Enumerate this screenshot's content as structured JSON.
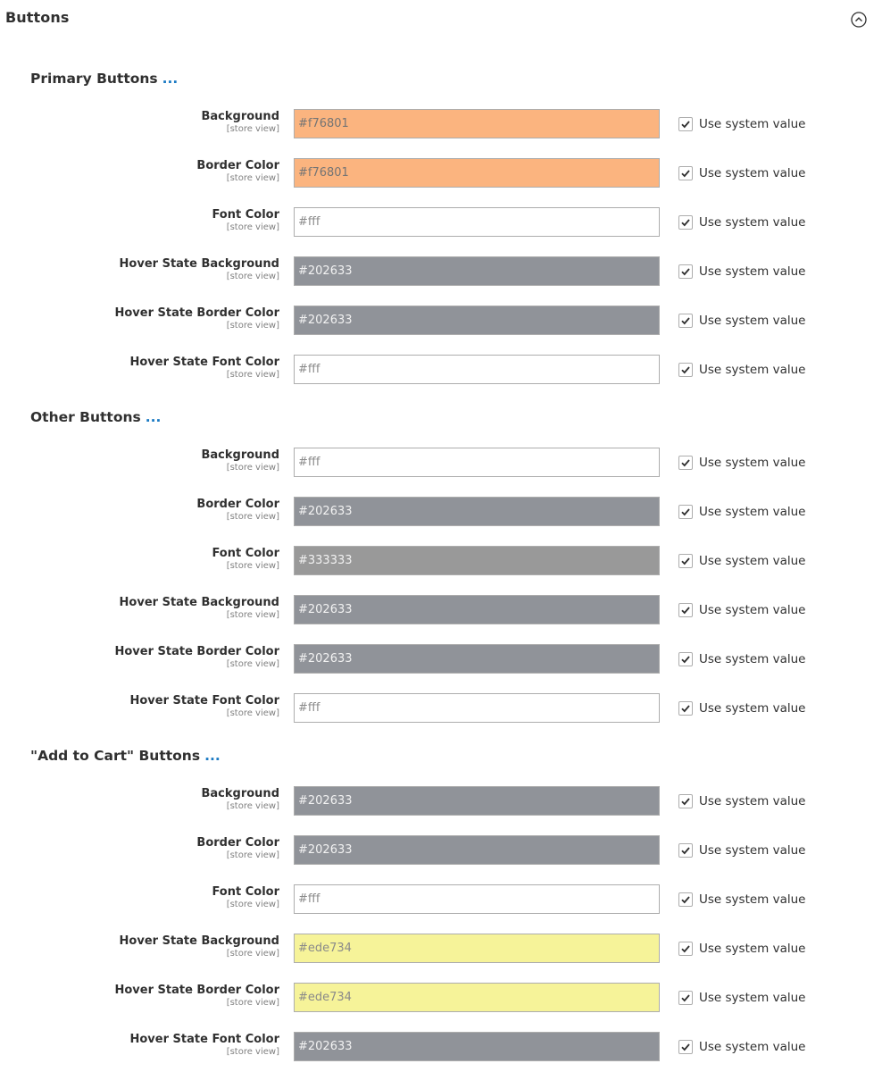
{
  "section": {
    "title": "Buttons"
  },
  "use_default_label": "Use system value",
  "groups": [
    {
      "title": "Primary Buttons",
      "dots": "...",
      "fields": [
        {
          "label": "Background",
          "scope": "[store view]",
          "value": "#f76801",
          "bg": "#fbb47f",
          "text": "#747474",
          "checked": true
        },
        {
          "label": "Border Color",
          "scope": "[store view]",
          "value": "#f76801",
          "bg": "#fbb47f",
          "text": "#747474",
          "checked": true
        },
        {
          "label": "Font Color",
          "scope": "[store view]",
          "value": "#fff",
          "bg": "#ffffff",
          "text": "#8a8a8a",
          "checked": true
        },
        {
          "label": "Hover State Background",
          "scope": "[store view]",
          "value": "#202633",
          "bg": "#909399",
          "text": "#f2f2f2",
          "checked": true
        },
        {
          "label": "Hover State Border Color",
          "scope": "[store view]",
          "value": "#202633",
          "bg": "#909399",
          "text": "#f2f2f2",
          "checked": true
        },
        {
          "label": "Hover State Font Color",
          "scope": "[store view]",
          "value": "#fff",
          "bg": "#ffffff",
          "text": "#8a8a8a",
          "checked": true
        }
      ]
    },
    {
      "title": "Other Buttons",
      "dots": "...",
      "fields": [
        {
          "label": "Background",
          "scope": "[store view]",
          "value": "#fff",
          "bg": "#ffffff",
          "text": "#8a8a8a",
          "checked": true
        },
        {
          "label": "Border Color",
          "scope": "[store view]",
          "value": "#202633",
          "bg": "#909399",
          "text": "#f2f2f2",
          "checked": true
        },
        {
          "label": "Font Color",
          "scope": "[store view]",
          "value": "#333333",
          "bg": "#999999",
          "text": "#f2f2f2",
          "checked": true
        },
        {
          "label": "Hover State Background",
          "scope": "[store view]",
          "value": "#202633",
          "bg": "#909399",
          "text": "#f2f2f2",
          "checked": true
        },
        {
          "label": "Hover State Border Color",
          "scope": "[store view]",
          "value": "#202633",
          "bg": "#909399",
          "text": "#f2f2f2",
          "checked": true
        },
        {
          "label": "Hover State Font Color",
          "scope": "[store view]",
          "value": "#fff",
          "bg": "#ffffff",
          "text": "#8a8a8a",
          "checked": true
        }
      ]
    },
    {
      "title": "\"Add to Cart\" Buttons",
      "dots": "...",
      "fields": [
        {
          "label": "Background",
          "scope": "[store view]",
          "value": "#202633",
          "bg": "#909399",
          "text": "#f2f2f2",
          "checked": true
        },
        {
          "label": "Border Color",
          "scope": "[store view]",
          "value": "#202633",
          "bg": "#909399",
          "text": "#f2f2f2",
          "checked": true
        },
        {
          "label": "Font Color",
          "scope": "[store view]",
          "value": "#fff",
          "bg": "#ffffff",
          "text": "#8a8a8a",
          "checked": true
        },
        {
          "label": "Hover State Background",
          "scope": "[store view]",
          "value": "#ede734",
          "bg": "#f6f399",
          "text": "#8a8a8a",
          "checked": true
        },
        {
          "label": "Hover State Border Color",
          "scope": "[store view]",
          "value": "#ede734",
          "bg": "#f6f399",
          "text": "#8a8a8a",
          "checked": true
        },
        {
          "label": "Hover State Font Color",
          "scope": "[store view]",
          "value": "#202633",
          "bg": "#909399",
          "text": "#f2f2f2",
          "checked": true
        }
      ]
    }
  ],
  "colors": {
    "link_blue": "#1979c3",
    "label_text": "#303030",
    "scope_text": "#808080",
    "input_border": "#adadad"
  }
}
